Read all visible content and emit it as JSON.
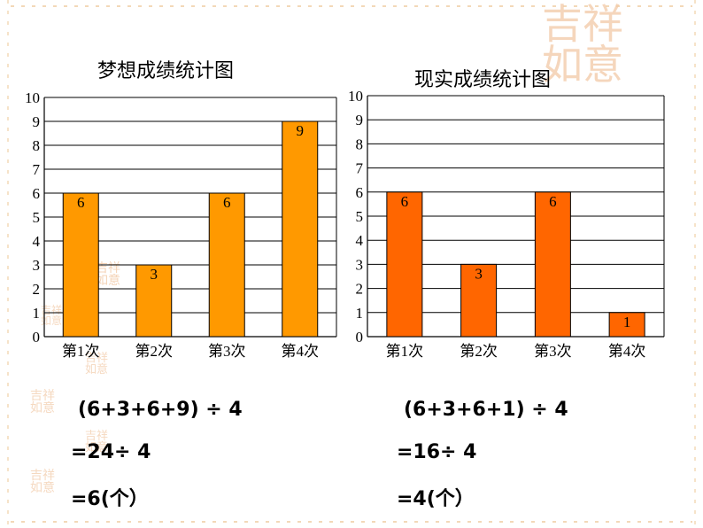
{
  "decor": {
    "seal_text": "吉祥如意"
  },
  "chart_data": [
    {
      "type": "bar",
      "title": "梦想成绩统计图",
      "categories": [
        "第1次",
        "第2次",
        "第3次",
        "第4次"
      ],
      "values": [
        6,
        3,
        6,
        9
      ],
      "y_ticks": [
        "0",
        "1",
        "2",
        "3",
        "4",
        "5",
        "6",
        "7",
        "8",
        "9",
        "10"
      ],
      "ylim": [
        0,
        10
      ],
      "grid": true,
      "bar_color": "#ff9900"
    },
    {
      "type": "bar",
      "title": "现实成绩统计图",
      "categories": [
        "第1次",
        "第2次",
        "第3次",
        "第4次"
      ],
      "values": [
        6,
        3,
        6,
        1
      ],
      "y_ticks": [
        "0",
        "1",
        "2",
        "3",
        "4",
        "5",
        "6",
        "7",
        "8",
        "9",
        "10"
      ],
      "ylim": [
        0,
        10
      ],
      "grid": true,
      "bar_color": "#ff6600"
    }
  ],
  "calculations": {
    "left": [
      "(6+3+6+9) ÷ 4",
      "=24÷ 4",
      "=6(个）"
    ],
    "right": [
      "(6+3+6+1) ÷ 4",
      "=16÷ 4",
      "=4(个）"
    ]
  }
}
